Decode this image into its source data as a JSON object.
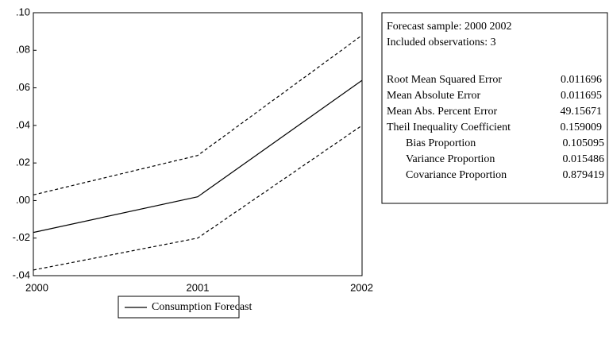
{
  "chart_data": {
    "type": "line",
    "categories": [
      "2000",
      "2001",
      "2002"
    ],
    "series": [
      {
        "name": "Consumption Forecast",
        "color": "#000000",
        "values": [
          -0.017,
          0.002,
          0.064
        ]
      },
      {
        "color": "#000000",
        "dashed": true,
        "values": [
          0.003,
          0.024,
          0.088
        ]
      },
      {
        "color": "#000000",
        "dashed": true,
        "values": [
          -0.037,
          -0.02,
          0.04
        ]
      }
    ],
    "ylim": [
      -0.04,
      0.1
    ],
    "yticks": [
      {
        "value": 0.1,
        "label": ".10"
      },
      {
        "value": 0.08,
        "label": ".08"
      },
      {
        "value": 0.06,
        "label": ".06"
      },
      {
        "value": 0.04,
        "label": ".04"
      },
      {
        "value": 0.02,
        "label": ".02"
      },
      {
        "value": 0.0,
        "label": ".00"
      },
      {
        "value": -0.02,
        "label": "-.02"
      },
      {
        "value": -0.04,
        "label": "-.04"
      }
    ],
    "grid": false
  },
  "stats": {
    "header": [
      "Forecast sample: 2000 2002",
      "Included observations: 3"
    ],
    "rows": [
      {
        "label": "Root Mean Squared Error",
        "value": "0.011696"
      },
      {
        "label": "Mean Absolute Error",
        "value": "0.011695"
      },
      {
        "label": "Mean Abs. Percent Error",
        "value": "49.15671"
      },
      {
        "label": "Theil Inequality Coefficient",
        "value": "0.159009"
      },
      {
        "label": "Bias Proportion",
        "value": "0.105095",
        "indent": true
      },
      {
        "label": "Variance Proportion",
        "value": "0.015486",
        "indent": true
      },
      {
        "label": "Covariance Proportion",
        "value": "0.879419",
        "indent": true
      }
    ]
  }
}
